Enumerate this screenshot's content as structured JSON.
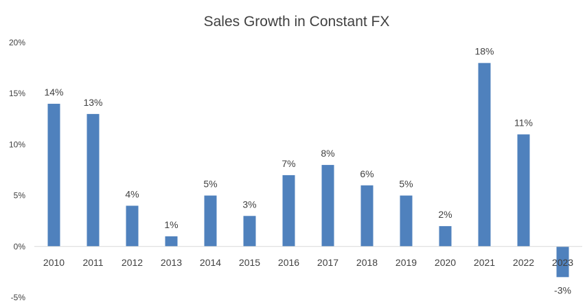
{
  "chart_data": {
    "type": "bar",
    "title": "Sales Growth in Constant FX",
    "xlabel": "",
    "ylabel": "",
    "categories": [
      "2010",
      "2011",
      "2012",
      "2013",
      "2014",
      "2015",
      "2016",
      "2017",
      "2018",
      "2019",
      "2020",
      "2021",
      "2022",
      "2023"
    ],
    "values": [
      14,
      13,
      4,
      1,
      5,
      3,
      7,
      8,
      6,
      5,
      2,
      18,
      11,
      -3
    ],
    "data_labels": [
      "14%",
      "13%",
      "4%",
      "1%",
      "5%",
      "3%",
      "7%",
      "8%",
      "6%",
      "5%",
      "2%",
      "18%",
      "11%",
      "-3%"
    ],
    "ylim": [
      -5,
      20
    ],
    "yticks": [
      -5,
      0,
      5,
      10,
      15,
      20
    ],
    "ytick_labels": [
      "-5%",
      "0%",
      "5%",
      "10%",
      "15%",
      "20%"
    ],
    "gridlines": false,
    "legend": "none",
    "bar_color": "#4f81bd"
  }
}
